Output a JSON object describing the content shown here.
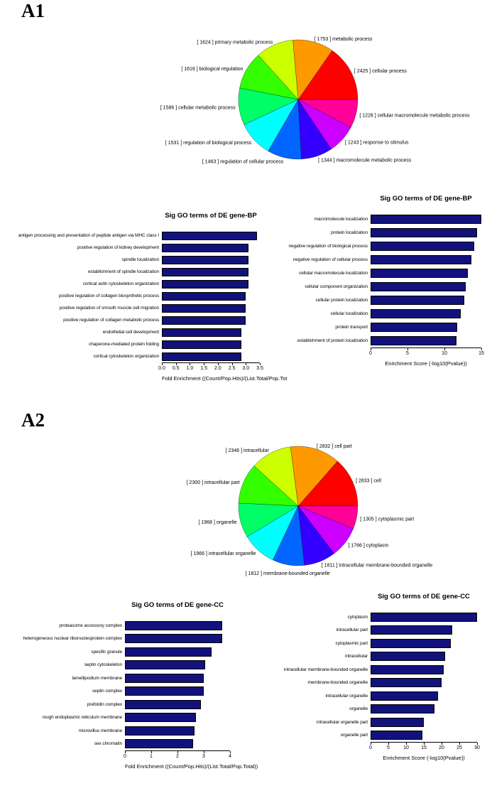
{
  "figure": {
    "panel_labels": [
      "A1",
      "A2"
    ]
  },
  "colors": {
    "bar_fill": "#12127d",
    "background": "#ffffff"
  },
  "chart_data": [
    {
      "id": "pie-go-bp",
      "type": "pie",
      "panel": "A1",
      "label_format": "[ count ] name",
      "slices": [
        {
          "name": "cellular process",
          "count": 2425,
          "color": "#FF0000"
        },
        {
          "name": "metabolic process",
          "count": 1753,
          "color": "#FF9900"
        },
        {
          "name": "primary metabolic process",
          "count": 1624,
          "color": "#CCFF00"
        },
        {
          "name": "biological regulation",
          "count": 1616,
          "color": "#33FF00"
        },
        {
          "name": "cellular metabolic process",
          "count": 1586,
          "color": "#00FF66"
        },
        {
          "name": "regulation of biological process",
          "count": 1531,
          "color": "#00FFFF"
        },
        {
          "name": "regulation of cellular process",
          "count": 1463,
          "color": "#0066FF"
        },
        {
          "name": "macromolecule metabolic process",
          "count": 1344,
          "color": "#3300FF"
        },
        {
          "name": "response to stimulus",
          "count": 1243,
          "color": "#CC00FF"
        },
        {
          "name": "cellular macromolecule metabolic process",
          "count": 1228,
          "color": "#FF0099"
        }
      ]
    },
    {
      "id": "bar-bp-fold-enrichment",
      "type": "bar",
      "panel": "A1",
      "orientation": "horizontal",
      "title": "Sig GO terms of DE gene-BP",
      "xlabel": "Fold Enrichment ((Count/Pop.Hits)/(List.Total/Pop.Tot",
      "xlim": [
        0,
        3.5
      ],
      "ticks": [
        0,
        0.5,
        1,
        1.5,
        2,
        2.5,
        3,
        3.5
      ],
      "tick_labels": [
        "0.0",
        "0.5",
        "1.0",
        "1.5",
        "2.0",
        "2.5",
        "3.0",
        "3.5"
      ],
      "categories": [
        "antigen processing and presentation of peptide antigen via MHC class I",
        "positive regulation of kidney development",
        "spindle localization",
        "establishment of spindle localization",
        "cortical actin cytoskeleton organization",
        "positive regulation of collagen biosynthetic process",
        "positive regulation of smooth muscle cell migration",
        "positive regulation of collagen metabolic process",
        "endothelial cell development",
        "chaperone-mediated protein folding",
        "cortical cytoskeleton organization"
      ],
      "values": [
        3.4,
        3.1,
        3.1,
        3.1,
        3.1,
        3.0,
        3.0,
        3.0,
        2.85,
        2.85,
        2.85
      ]
    },
    {
      "id": "bar-bp-enrichment-score",
      "type": "bar",
      "panel": "A1",
      "orientation": "horizontal",
      "title": "Sig GO terms of DE gene-BP",
      "xlabel": "Enrichment Score (-log10(Pvalue))",
      "xlim": [
        0,
        15
      ],
      "ticks": [
        0,
        5,
        10,
        15
      ],
      "tick_labels": [
        "0",
        "5",
        "10",
        "15"
      ],
      "categories": [
        "macromolecule localization",
        "protein localization",
        "negative regulation of biological process",
        "negative regulation of cellular process",
        "cellular macromolecule localization",
        "cellular component organization",
        "cellular protein localization",
        "cellular localization",
        "protein transport",
        "establishment of protein localization"
      ],
      "values": [
        15,
        14.4,
        14,
        13.7,
        13.2,
        12.9,
        12.7,
        12.2,
        11.7,
        11.6
      ]
    },
    {
      "id": "pie-go-cc",
      "type": "pie",
      "panel": "A2",
      "label_format": "[ count ] name",
      "slices": [
        {
          "name": "cell",
          "count": 2833,
          "color": "#FF0000"
        },
        {
          "name": "cell part",
          "count": 2832,
          "color": "#FF9900"
        },
        {
          "name": "intracellular",
          "count": 2346,
          "color": "#CCFF00"
        },
        {
          "name": "intracellular part",
          "count": 2300,
          "color": "#33FF00"
        },
        {
          "name": "organelle",
          "count": 1968,
          "color": "#00FF66"
        },
        {
          "name": "intracellular organelle",
          "count": 1966,
          "color": "#00FFFF"
        },
        {
          "name": "membrane-bounded organelle",
          "count": 1812,
          "color": "#0066FF"
        },
        {
          "name": "intracellular membrane-bounded organelle",
          "count": 1811,
          "color": "#3300FF"
        },
        {
          "name": "cytoplasm",
          "count": 1766,
          "color": "#CC00FF"
        },
        {
          "name": "cytoplasmic part",
          "count": 1305,
          "color": "#FF0099"
        }
      ]
    },
    {
      "id": "bar-cc-fold-enrichment",
      "type": "bar",
      "panel": "A2",
      "orientation": "horizontal",
      "title": "Sig GO terms of DE gene-CC",
      "xlabel": "Fold Enrichment ((Count/Pop.Hits)/(List.Total/Pop.Total))",
      "xlim": [
        0,
        4
      ],
      "ticks": [
        0,
        1,
        2,
        3,
        4
      ],
      "tick_labels": [
        "0",
        "1",
        "2",
        "3",
        "4"
      ],
      "categories": [
        "proteasome accessory complex",
        "heterogeneous nuclear ribonucleoprotein complex",
        "specific granule",
        "septin cytoskeleton",
        "lamellipodium membrane",
        "septin complex",
        "prefoldin complex",
        "rough endoplasmic reticulum membrane",
        "microvillus membrane",
        "sex chromatin"
      ],
      "values": [
        3.7,
        3.7,
        3.3,
        3.05,
        3.0,
        3.0,
        2.9,
        2.7,
        2.65,
        2.6
      ]
    },
    {
      "id": "bar-cc-enrichment-score",
      "type": "bar",
      "panel": "A2",
      "orientation": "horizontal",
      "title": "Sig GO terms of DE gene-CC",
      "xlabel": "Enrichment Score (-log10(Pvalue))",
      "xlim": [
        0,
        30
      ],
      "ticks": [
        0,
        5,
        10,
        15,
        20,
        25,
        30
      ],
      "tick_labels": [
        "0",
        "5",
        "10",
        "15",
        "20",
        "25",
        "30"
      ],
      "categories": [
        "cytoplasm",
        "intracellular part",
        "cytoplasmic part",
        "intracellular",
        "intracellular membrane-bounded organelle",
        "membrane-bounded organelle",
        "intracellular organelle",
        "organelle",
        "intracellular organelle part",
        "organelle part"
      ],
      "values": [
        30,
        23,
        22.5,
        21,
        20.5,
        20,
        19,
        18,
        15,
        14.5
      ]
    }
  ]
}
